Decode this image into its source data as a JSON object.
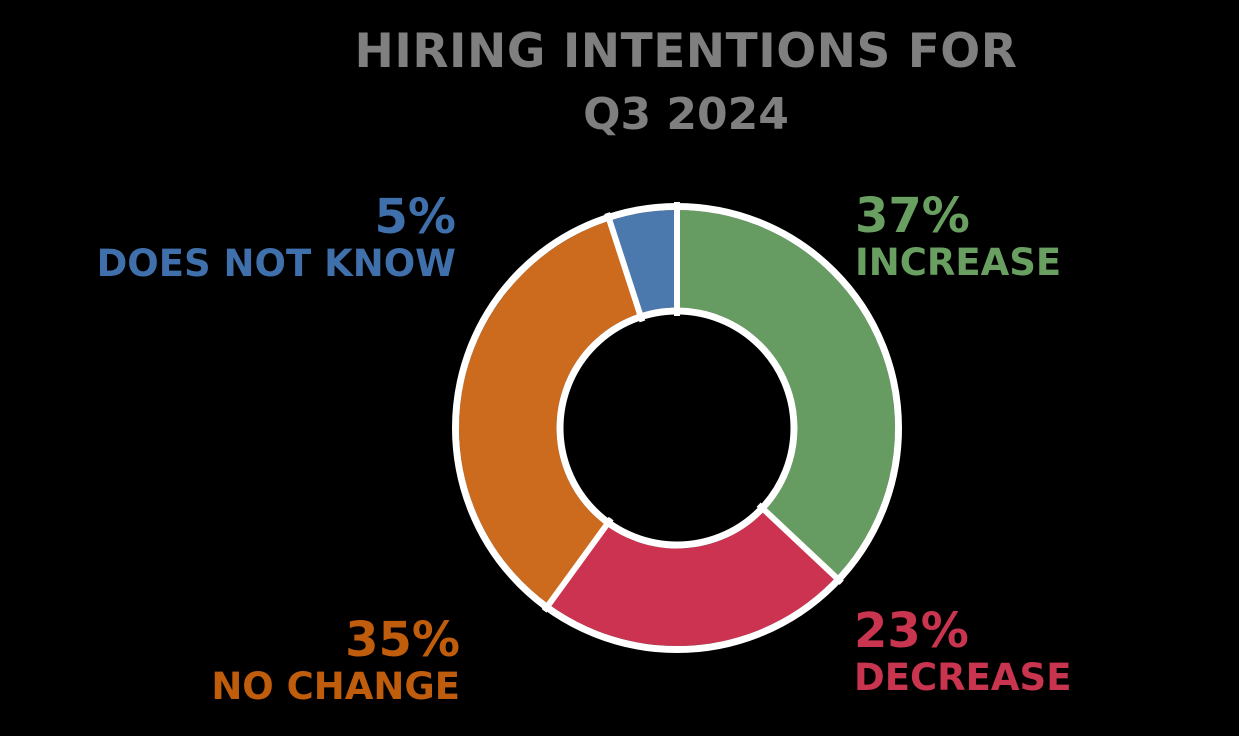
{
  "background_color": "#000000",
  "title": {
    "line1": "HIRING INTENTIONS FOR",
    "line2": "Q3 2024",
    "color": "#7f7f7f"
  },
  "chart_data": {
    "type": "pie",
    "subtype": "donut",
    "title": "HIRING INTENTIONS FOR Q3 2024",
    "start_angle": "top (12 o'clock)",
    "direction": "clockwise",
    "inner_radius_ratio": 0.55,
    "wedge_border_color": "#ffffff",
    "segments": [
      {
        "label": "INCREASE",
        "value": 37,
        "pct_text": "37%",
        "color": "#669c61",
        "label_color": "#69a061",
        "label_position": "top-right"
      },
      {
        "label": "DECREASE",
        "value": 23,
        "pct_text": "23%",
        "color": "#cc3350",
        "label_color": "#c9344f",
        "label_position": "bottom-right"
      },
      {
        "label": "NO CHANGE",
        "value": 35,
        "pct_text": "35%",
        "color": "#cc6a1e",
        "label_color": "#c05d0d",
        "label_position": "bottom-left"
      },
      {
        "label": "DOES NOT KNOW",
        "value": 5,
        "pct_text": "5%",
        "color": "#4c79ad",
        "label_color": "#4070ac",
        "label_position": "top-left"
      }
    ]
  }
}
